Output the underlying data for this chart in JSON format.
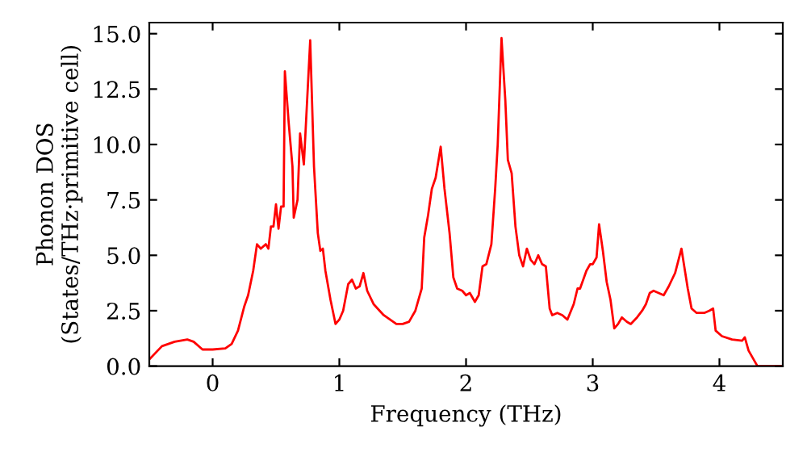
{
  "chart_data": {
    "type": "line",
    "xlabel": "Frequency (THz)",
    "ylabel": "Phonon DOS\n(States/THz·primitive cell)",
    "xlim": [
      -0.5,
      4.5
    ],
    "ylim": [
      0,
      15.5
    ],
    "xticks": [
      0,
      1,
      2,
      3,
      4
    ],
    "yticks": [
      {
        "value": 0,
        "label": "0.0"
      },
      {
        "value": 2.5,
        "label": "2.5"
      },
      {
        "value": 5,
        "label": "5.0"
      },
      {
        "value": 7.5,
        "label": "7.5"
      },
      {
        "value": 10,
        "label": "10.0"
      },
      {
        "value": 12.5,
        "label": "12.5"
      },
      {
        "value": 15,
        "label": "15.0"
      }
    ],
    "grid": false,
    "legend": false,
    "marker": "none",
    "line_style": "solid",
    "series": [
      {
        "color": "#ff0000",
        "x": [
          -0.5,
          -0.4,
          -0.3,
          -0.2,
          -0.15,
          -0.08,
          0.0,
          0.1,
          0.15,
          0.2,
          0.25,
          0.28,
          0.32,
          0.35,
          0.38,
          0.42,
          0.44,
          0.46,
          0.48,
          0.5,
          0.52,
          0.54,
          0.56,
          0.57,
          0.6,
          0.63,
          0.64,
          0.67,
          0.69,
          0.72,
          0.77,
          0.8,
          0.83,
          0.85,
          0.87,
          0.89,
          0.93,
          0.97,
          1.0,
          1.03,
          1.07,
          1.1,
          1.13,
          1.16,
          1.19,
          1.22,
          1.27,
          1.35,
          1.45,
          1.5,
          1.55,
          1.6,
          1.65,
          1.67,
          1.7,
          1.73,
          1.76,
          1.8,
          1.83,
          1.87,
          1.9,
          1.93,
          1.97,
          2.0,
          2.03,
          2.07,
          2.1,
          2.13,
          2.16,
          2.2,
          2.23,
          2.25,
          2.28,
          2.31,
          2.33,
          2.36,
          2.39,
          2.42,
          2.45,
          2.48,
          2.51,
          2.54,
          2.57,
          2.6,
          2.63,
          2.66,
          2.68,
          2.72,
          2.76,
          2.8,
          2.85,
          2.88,
          2.9,
          2.95,
          2.98,
          3.0,
          3.03,
          3.05,
          3.08,
          3.11,
          3.14,
          3.17,
          3.2,
          3.23,
          3.27,
          3.3,
          3.35,
          3.39,
          3.42,
          3.45,
          3.48,
          3.52,
          3.56,
          3.6,
          3.65,
          3.7,
          3.75,
          3.78,
          3.82,
          3.88,
          3.92,
          3.95,
          3.97,
          4.02,
          4.1,
          4.18,
          4.2,
          4.23,
          4.28,
          4.3,
          4.5
        ],
        "values": [
          0.3,
          0.9,
          1.1,
          1.2,
          1.1,
          0.75,
          0.75,
          0.8,
          1.0,
          1.6,
          2.7,
          3.2,
          4.3,
          5.5,
          5.3,
          5.5,
          5.3,
          6.3,
          6.3,
          7.3,
          6.2,
          7.2,
          7.2,
          13.3,
          11,
          9,
          6.7,
          7.5,
          10.5,
          9.1,
          14.7,
          9,
          6.0,
          5.2,
          5.3,
          4.3,
          3.0,
          1.9,
          2.1,
          2.5,
          3.7,
          3.9,
          3.5,
          3.6,
          4.2,
          3.4,
          2.8,
          2.3,
          1.9,
          1.9,
          2.0,
          2.5,
          3.5,
          5.8,
          6.8,
          8.0,
          8.5,
          9.9,
          8,
          6.0,
          4.0,
          3.5,
          3.4,
          3.2,
          3.3,
          2.9,
          3.2,
          4.5,
          4.6,
          5.5,
          8,
          10,
          14.8,
          12,
          9.3,
          8.7,
          6.3,
          5.0,
          4.5,
          5.3,
          4.8,
          4.6,
          5.0,
          4.6,
          4.5,
          2.6,
          2.3,
          2.4,
          2.3,
          2.1,
          2.8,
          3.5,
          3.5,
          4.3,
          4.6,
          4.6,
          4.9,
          6.4,
          5.2,
          3.8,
          3.0,
          1.7,
          1.9,
          2.2,
          2.0,
          1.9,
          2.2,
          2.5,
          2.8,
          3.3,
          3.4,
          3.3,
          3.2,
          3.6,
          4.2,
          5.3,
          3.5,
          2.6,
          2.4,
          2.4,
          2.5,
          2.6,
          1.6,
          1.35,
          1.2,
          1.15,
          1.3,
          0.7,
          0.2,
          0,
          0
        ]
      }
    ]
  }
}
